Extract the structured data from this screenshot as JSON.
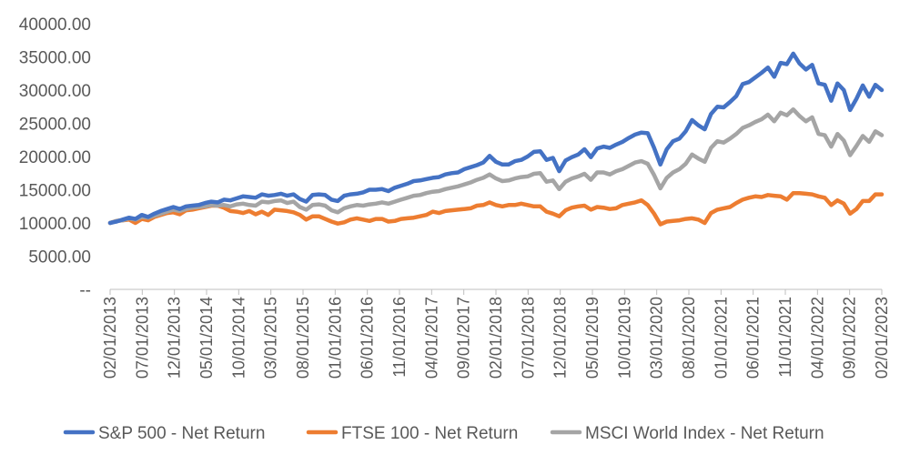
{
  "chart_data": {
    "type": "line",
    "ylim": [
      0,
      40000
    ],
    "y_ticks": [
      "--",
      "5000.00",
      "10000.00",
      "15000.00",
      "20000.00",
      "25000.00",
      "30000.00",
      "35000.00",
      "40000.00"
    ],
    "y_tick_values": [
      0,
      5000,
      10000,
      15000,
      20000,
      25000,
      30000,
      35000,
      40000
    ],
    "x_start": "2013-02",
    "x_end": "2023-02",
    "x_ticks": [
      "02/01/2013",
      "07/01/2013",
      "12/01/2013",
      "05/01/2014",
      "10/01/2014",
      "03/01/2015",
      "08/01/2015",
      "01/01/2016",
      "06/01/2016",
      "11/01/2016",
      "04/01/2017",
      "09/01/2017",
      "02/01/2018",
      "07/01/2018",
      "12/01/2018",
      "05/01/2019",
      "10/01/2019",
      "03/01/2020",
      "08/01/2020",
      "01/01/2021",
      "06/01/2021",
      "11/01/2021",
      "04/01/2022",
      "09/01/2022",
      "02/01/2023"
    ],
    "grid": false,
    "legend_position": "bottom",
    "series": [
      {
        "name": "S&P 500 - Net Return",
        "color": "#4472C4",
        "values": [
          10000,
          10200,
          10500,
          10800,
          10600,
          11200,
          10900,
          11400,
          11800,
          12100,
          12400,
          12100,
          12500,
          12600,
          12700,
          13000,
          13200,
          13100,
          13500,
          13400,
          13700,
          14000,
          13900,
          13800,
          14300,
          14100,
          14200,
          14400,
          14100,
          14300,
          13600,
          13200,
          14200,
          14300,
          14200,
          13500,
          13300,
          14100,
          14300,
          14400,
          14600,
          15000,
          15000,
          15100,
          14800,
          15300,
          15600,
          15900,
          16300,
          16400,
          16600,
          16800,
          16900,
          17300,
          17500,
          17600,
          18100,
          18400,
          18700,
          19100,
          20100,
          19200,
          18800,
          18800,
          19300,
          19500,
          20000,
          20700,
          20800,
          19500,
          19800,
          17800,
          19400,
          19900,
          20300,
          21100,
          19900,
          21200,
          21500,
          21300,
          21800,
          22200,
          22800,
          23300,
          23600,
          23500,
          21300,
          18800,
          21100,
          22300,
          22700,
          23800,
          25500,
          24700,
          24100,
          26400,
          27500,
          27400,
          28200,
          29100,
          30900,
          31200,
          31900,
          32600,
          33400,
          32000,
          34100,
          33900,
          35500,
          34000,
          33100,
          33800,
          31000,
          30800,
          28400,
          31000,
          30000,
          27000,
          28700,
          30700,
          29000,
          30800,
          30000
        ]
      },
      {
        "name": "FTSE 100 - Net Return",
        "color": "#ED7D31",
        "values": [
          10000,
          10300,
          10400,
          10500,
          10000,
          10600,
          10400,
          10900,
          11200,
          11500,
          11600,
          11300,
          11900,
          12000,
          12200,
          12400,
          12600,
          12600,
          12300,
          11800,
          11700,
          11500,
          11800,
          11300,
          11700,
          11200,
          12000,
          11900,
          11800,
          11600,
          11200,
          10500,
          11000,
          11000,
          10600,
          10200,
          9900,
          10100,
          10500,
          10700,
          10500,
          10300,
          10600,
          10600,
          10200,
          10300,
          10600,
          10700,
          10800,
          11000,
          11200,
          11700,
          11500,
          11800,
          11900,
          12000,
          12100,
          12200,
          12600,
          12700,
          13100,
          12700,
          12500,
          12700,
          12700,
          12900,
          12700,
          12500,
          12500,
          11700,
          11400,
          11000,
          11900,
          12300,
          12500,
          12600,
          12000,
          12400,
          12300,
          12100,
          12200,
          12700,
          12900,
          13100,
          13400,
          12700,
          11400,
          9800,
          10200,
          10300,
          10400,
          10600,
          10700,
          10500,
          10000,
          11500,
          12000,
          12200,
          12400,
          13000,
          13500,
          13800,
          14000,
          13900,
          14200,
          14100,
          14000,
          13500,
          14500,
          14500,
          14400,
          14300,
          14000,
          13800,
          12700,
          13400,
          12900,
          11400,
          12100,
          13300,
          13300,
          14300,
          14300
        ]
      },
      {
        "name": "MSCI World Index - Net Return",
        "color": "#A5A5A5",
        "values": [
          10000,
          10300,
          10400,
          10700,
          10500,
          10900,
          10800,
          11100,
          11400,
          11700,
          12000,
          11800,
          12100,
          12300,
          12400,
          12500,
          12700,
          12600,
          12700,
          12500,
          12800,
          12900,
          12700,
          12600,
          13200,
          13100,
          13300,
          13400,
          13000,
          13200,
          12400,
          12000,
          12700,
          12800,
          12600,
          11900,
          11600,
          12200,
          12500,
          12700,
          12600,
          12800,
          12900,
          13100,
          12900,
          13200,
          13500,
          13800,
          14100,
          14200,
          14500,
          14700,
          14800,
          15100,
          15300,
          15500,
          15800,
          16100,
          16500,
          16800,
          17300,
          16700,
          16300,
          16400,
          16700,
          16900,
          17000,
          17400,
          17500,
          16200,
          16400,
          15100,
          16200,
          16700,
          17000,
          17400,
          16500,
          17600,
          17600,
          17300,
          17800,
          18100,
          18600,
          19100,
          19300,
          18900,
          17200,
          15200,
          16800,
          17600,
          18100,
          18900,
          20300,
          19700,
          19200,
          21300,
          22300,
          22100,
          22700,
          23400,
          24300,
          24700,
          25200,
          25600,
          26300,
          25300,
          26600,
          26200,
          27100,
          26100,
          25300,
          25900,
          23400,
          23200,
          21500,
          23400,
          22400,
          20200,
          21600,
          23100,
          22200,
          23800,
          23200
        ]
      }
    ]
  }
}
